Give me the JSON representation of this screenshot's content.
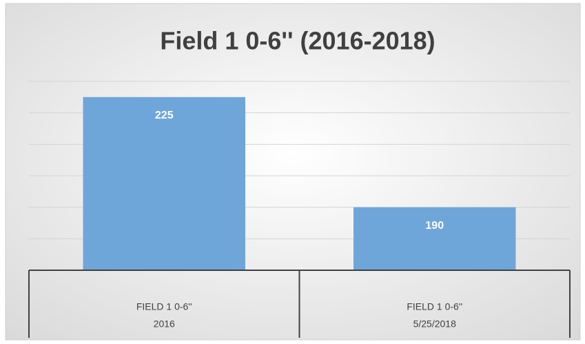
{
  "chart_data": {
    "type": "bar",
    "title": "Field 1 0-6'' (2016-2018)",
    "categories": [
      [
        "FIELD 1 0-6''",
        "2016"
      ],
      [
        "FIELD 1 0-6''",
        "5/25/2018"
      ]
    ],
    "values": [
      225,
      190
    ],
    "color": "#6fa6da",
    "ylim": [
      170,
      230
    ],
    "yticks": [
      170,
      180,
      190,
      200,
      210,
      220,
      230
    ],
    "grid": true
  }
}
